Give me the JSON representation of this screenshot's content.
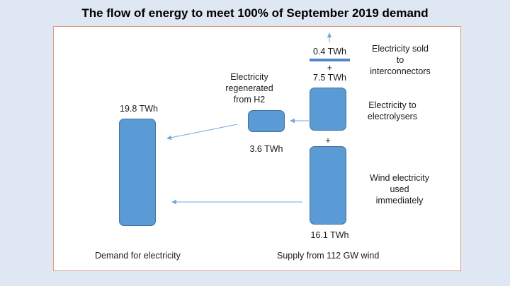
{
  "title": "The flow of energy to meet 100% of September 2019 demand",
  "labels": {
    "sold_value": "0.4 TWh",
    "plus_top": "+",
    "electrolysers_value": "7.5 TWh",
    "plus_mid": "+",
    "wind_value": "16.1 TWh",
    "regenerated_value": "3.6 TWh",
    "demand_value": "19.8 TWh",
    "regenerated_desc": [
      "Electricity",
      "regenerated",
      "from H2"
    ],
    "sold_desc": [
      "Electricity sold",
      "to",
      "interconnectors"
    ],
    "electrolysers_desc": [
      "Electricity to",
      "electrolysers"
    ],
    "wind_desc": [
      "Wind electricity",
      "used",
      "immediately"
    ],
    "demand_caption": "Demand for electricity",
    "supply_caption": "Supply from 112 GW wind"
  },
  "colors": {
    "box_fill": "#5b9bd5",
    "arrow": "#6fa8dc",
    "panel_border": "#e09a84",
    "background": "#dfe7f3"
  }
}
